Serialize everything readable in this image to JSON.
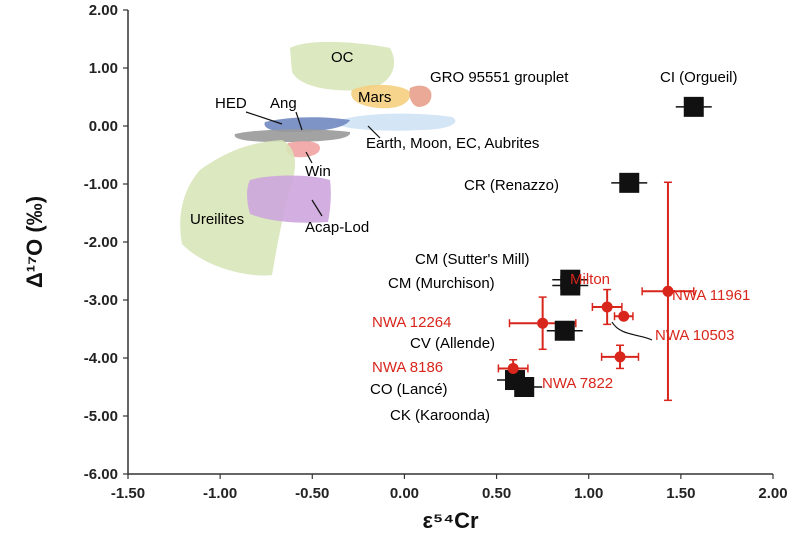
{
  "chart_data": {
    "type": "scatter",
    "xlabel": "ε⁵⁴Cr",
    "ylabel": "Δ¹⁷O (‰)",
    "xlim": [
      -1.5,
      2.0
    ],
    "ylim": [
      -6.0,
      2.0
    ],
    "x_ticks": [
      "-1.50",
      "-1.00",
      "-0.50",
      "0.00",
      "0.50",
      "1.00",
      "1.50",
      "2.00"
    ],
    "y_ticks": [
      "2.00",
      "1.00",
      "0.00",
      "-1.00",
      "-2.00",
      "-3.00",
      "-4.00",
      "-5.00",
      "-6.00"
    ],
    "grid": false,
    "fields": [
      {
        "label": "OC",
        "color": "#d8e6b8"
      },
      {
        "label": "Mars",
        "color": "#f5cf80"
      },
      {
        "label": "GRO 95551 grouplet",
        "color": "#e8a08c"
      },
      {
        "label": "HED",
        "color": "#7088c0"
      },
      {
        "label": "Ang",
        "color": "#999999"
      },
      {
        "label": "Earth, Moon, EC, Aubrites",
        "color": "#cfe3f5"
      },
      {
        "label": "Win",
        "color": "#f2a3a3"
      },
      {
        "label": "Ureilites",
        "color": "#d8e6b8"
      },
      {
        "label": "Acap-Lod",
        "color": "#cda6dd"
      }
    ],
    "series": [
      {
        "color": "#111111",
        "marker": "square",
        "points": [
          {
            "label": "CI (Orgueil)",
            "x": 1.57,
            "y": 0.33
          },
          {
            "label": "CR (Renazzo)",
            "x": 1.22,
            "y": -0.98
          },
          {
            "label": "CM (Sutter's Mill)",
            "x": 0.9,
            "y": -2.65
          },
          {
            "label": "CM (Murchison)",
            "x": 0.9,
            "y": -2.75
          },
          {
            "label": "CV (Allende)",
            "x": 0.87,
            "y": -3.53
          },
          {
            "label": "CO (Lancé)",
            "x": 0.6,
            "y": -4.38
          },
          {
            "label": "CK (Karoonda)",
            "x": 0.65,
            "y": -4.5
          }
        ]
      },
      {
        "color": "#d8261c",
        "marker": "circle",
        "points": [
          {
            "label": "Milton",
            "x": 1.1,
            "y": -3.12,
            "xerr": 0.08,
            "yerr": 0.3
          },
          {
            "label": "NWA 11961",
            "x": 1.43,
            "y": -2.85,
            "xerr": 0.14,
            "yerr": 1.88
          },
          {
            "label": "NWA 10503",
            "x": 1.19,
            "y": -3.28,
            "xerr": 0.05,
            "yerr": 0.05
          },
          {
            "label": "NWA 12264",
            "x": 0.75,
            "y": -3.4,
            "xerr": 0.18,
            "yerr": 0.45
          },
          {
            "label": "NWA 7822",
            "x": 1.17,
            "y": -3.98,
            "xerr": 0.1,
            "yerr": 0.2
          },
          {
            "label": "NWA 8186",
            "x": 0.59,
            "y": -4.18,
            "xerr": 0.08,
            "yerr": 0.15
          }
        ]
      }
    ]
  }
}
